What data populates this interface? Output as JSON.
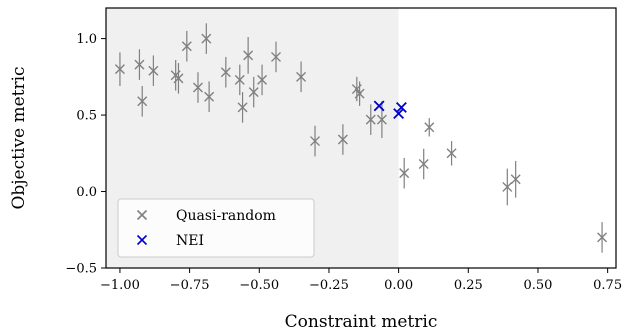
{
  "chart_data": {
    "type": "scatter",
    "xlabel": "Constraint metric",
    "ylabel": "Objective metric",
    "xlim": [
      -1.05,
      0.78
    ],
    "ylim": [
      -0.5,
      1.2
    ],
    "xticks": [
      -1.0,
      -0.75,
      -0.5,
      -0.25,
      0.0,
      0.25,
      0.5,
      0.75
    ],
    "xtick_labels": [
      "−1.00",
      "−0.75",
      "−0.50",
      "−0.25",
      "0.00",
      "0.25",
      "0.50",
      "0.75"
    ],
    "yticks": [
      -0.5,
      0.0,
      0.5,
      1.0
    ],
    "ytick_labels": [
      "−0.5",
      "0.0",
      "0.5",
      "1.0"
    ],
    "feasible_region_shading": {
      "x_from": -1.05,
      "x_to": 0.0,
      "color": "#f0f0f0"
    },
    "grid": false,
    "legend_position": "lower-left",
    "series": [
      {
        "name": "Quasi-random",
        "color": "#808080",
        "marker": "x",
        "points": [
          {
            "x": -1.0,
            "y": 0.8,
            "err": 0.11
          },
          {
            "x": -0.93,
            "y": 0.83,
            "err": 0.1
          },
          {
            "x": -0.92,
            "y": 0.59,
            "err": 0.1
          },
          {
            "x": -0.88,
            "y": 0.79,
            "err": 0.1
          },
          {
            "x": -0.8,
            "y": 0.76,
            "err": 0.1
          },
          {
            "x": -0.79,
            "y": 0.74,
            "err": 0.1
          },
          {
            "x": -0.76,
            "y": 0.95,
            "err": 0.1
          },
          {
            "x": -0.72,
            "y": 0.68,
            "err": 0.1
          },
          {
            "x": -0.69,
            "y": 1.0,
            "err": 0.1
          },
          {
            "x": -0.68,
            "y": 0.62,
            "err": 0.1
          },
          {
            "x": -0.62,
            "y": 0.78,
            "err": 0.1
          },
          {
            "x": -0.57,
            "y": 0.73,
            "err": 0.1
          },
          {
            "x": -0.56,
            "y": 0.55,
            "err": 0.1
          },
          {
            "x": -0.54,
            "y": 0.89,
            "err": 0.12
          },
          {
            "x": -0.52,
            "y": 0.65,
            "err": 0.1
          },
          {
            "x": -0.49,
            "y": 0.73,
            "err": 0.1
          },
          {
            "x": -0.44,
            "y": 0.88,
            "err": 0.1
          },
          {
            "x": -0.35,
            "y": 0.75,
            "err": 0.1
          },
          {
            "x": -0.3,
            "y": 0.33,
            "err": 0.1
          },
          {
            "x": -0.2,
            "y": 0.34,
            "err": 0.1
          },
          {
            "x": -0.15,
            "y": 0.67,
            "err": 0.08
          },
          {
            "x": -0.14,
            "y": 0.64,
            "err": 0.08
          },
          {
            "x": -0.1,
            "y": 0.47,
            "err": 0.1
          },
          {
            "x": -0.06,
            "y": 0.47,
            "err": 0.12
          },
          {
            "x": 0.02,
            "y": 0.12,
            "err": 0.1
          },
          {
            "x": 0.09,
            "y": 0.18,
            "err": 0.1
          },
          {
            "x": 0.11,
            "y": 0.42,
            "err": 0.06
          },
          {
            "x": 0.19,
            "y": 0.25,
            "err": 0.08
          },
          {
            "x": 0.39,
            "y": 0.03,
            "err": 0.12
          },
          {
            "x": 0.42,
            "y": 0.08,
            "err": 0.12
          },
          {
            "x": 0.73,
            "y": -0.3,
            "err": 0.1
          }
        ]
      },
      {
        "name": "NEI",
        "color": "#0000cc",
        "marker": "x",
        "points": [
          {
            "x": -0.07,
            "y": 0.56,
            "err": 0.0
          },
          {
            "x": 0.0,
            "y": 0.51,
            "err": 0.0
          },
          {
            "x": 0.01,
            "y": 0.55,
            "err": 0.0
          }
        ]
      }
    ]
  }
}
